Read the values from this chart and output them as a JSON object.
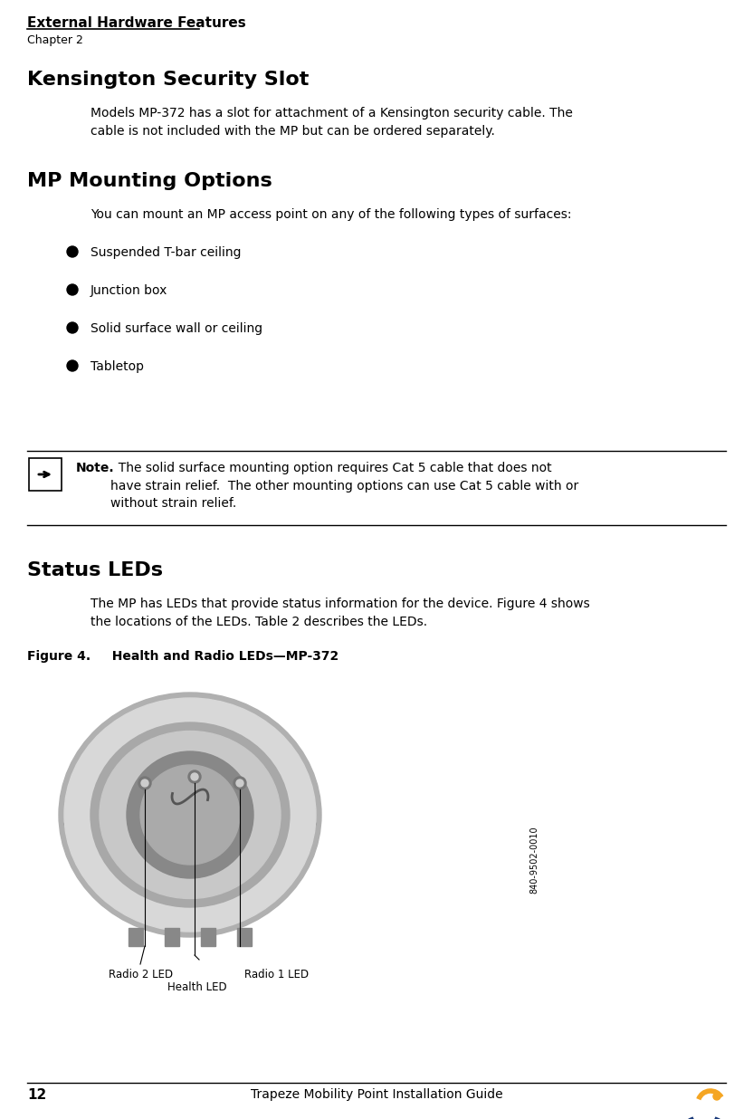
{
  "page_width": 8.32,
  "page_height": 12.36,
  "bg_color": "#ffffff",
  "header_title": "External Hardware Features",
  "header_chapter": "Chapter 2",
  "section1_title": "Kensington Security Slot",
  "section1_body": "Models MP-372 has a slot for attachment of a Kensington security cable. The\ncable is not included with the MP but can be ordered separately.",
  "section2_title": "MP Mounting Options",
  "section2_intro": "You can mount an MP access point on any of the following types of surfaces:",
  "bullets": [
    "Suspended T-bar ceiling",
    "Junction box",
    "Solid surface wall or ceiling",
    "Tabletop"
  ],
  "note_bold": "Note.",
  "note_text": "  The solid surface mounting option requires Cat 5 cable that does not\nhave strain relief.  The other mounting options can use Cat 5 cable with or\nwithout strain relief.",
  "section3_title": "Status LEDs",
  "section3_body": "The MP has LEDs that provide status information for the device. Figure 4 shows\nthe locations of the LEDs. Table 2 describes the LEDs.",
  "figure_caption": "Figure 4.   Health and Radio LEDs—MP-372",
  "label_radio2": "Radio 2 LED",
  "label_health": "Health LED",
  "label_radio1": "Radio 1 LED",
  "part_number": "840-9502-0010",
  "footer_page": "12",
  "footer_center": "Trapeze Mobility Point Installation Guide",
  "text_color": "#000000",
  "line_color": "#000000",
  "note_box_color": "#000000"
}
